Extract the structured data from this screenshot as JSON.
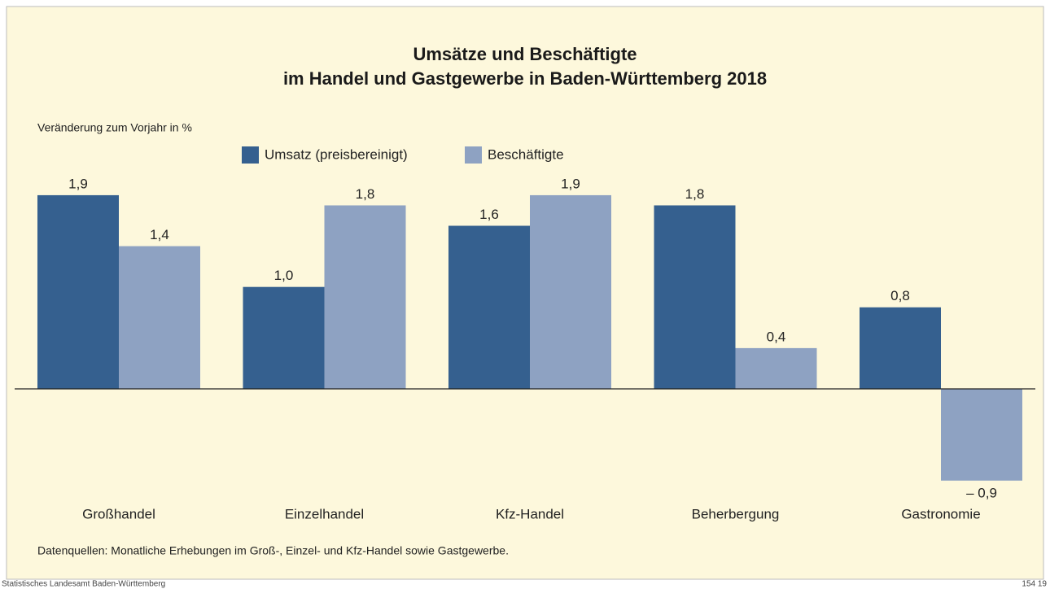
{
  "chart_data": {
    "type": "bar",
    "title": [
      "Umsätze und Beschäftigte",
      "im Handel und Gastgewerbe in Baden-Württemberg 2018"
    ],
    "subtitle": "Veränderung zum Vorjahr in %",
    "categories": [
      "Großhandel",
      "Einzelhandel",
      "Kfz-Handel",
      "Beherbergung",
      "Gastronomie"
    ],
    "series": [
      {
        "name": "Umsatz (preisbereinigt)",
        "color": "#35608f",
        "values": [
          1.9,
          1.0,
          1.6,
          1.8,
          0.8
        ],
        "value_labels": [
          "1,9",
          "1,0",
          "1,6",
          "1,8",
          "0,8"
        ]
      },
      {
        "name": "Beschäftigte",
        "color": "#8ea2c2",
        "values": [
          1.4,
          1.8,
          1.9,
          0.4,
          -0.9
        ],
        "value_labels": [
          "1,4",
          "1,8",
          "1,9",
          "0,4",
          "– 0,9"
        ]
      }
    ],
    "source": "Datenquellen: Monatliche Erhebungen im Groß-, Einzel- und Kfz-Handel sowie Gastgewerbe.",
    "publisher": "Statistisches Landesamt Baden-Württemberg",
    "number": "154 19"
  }
}
